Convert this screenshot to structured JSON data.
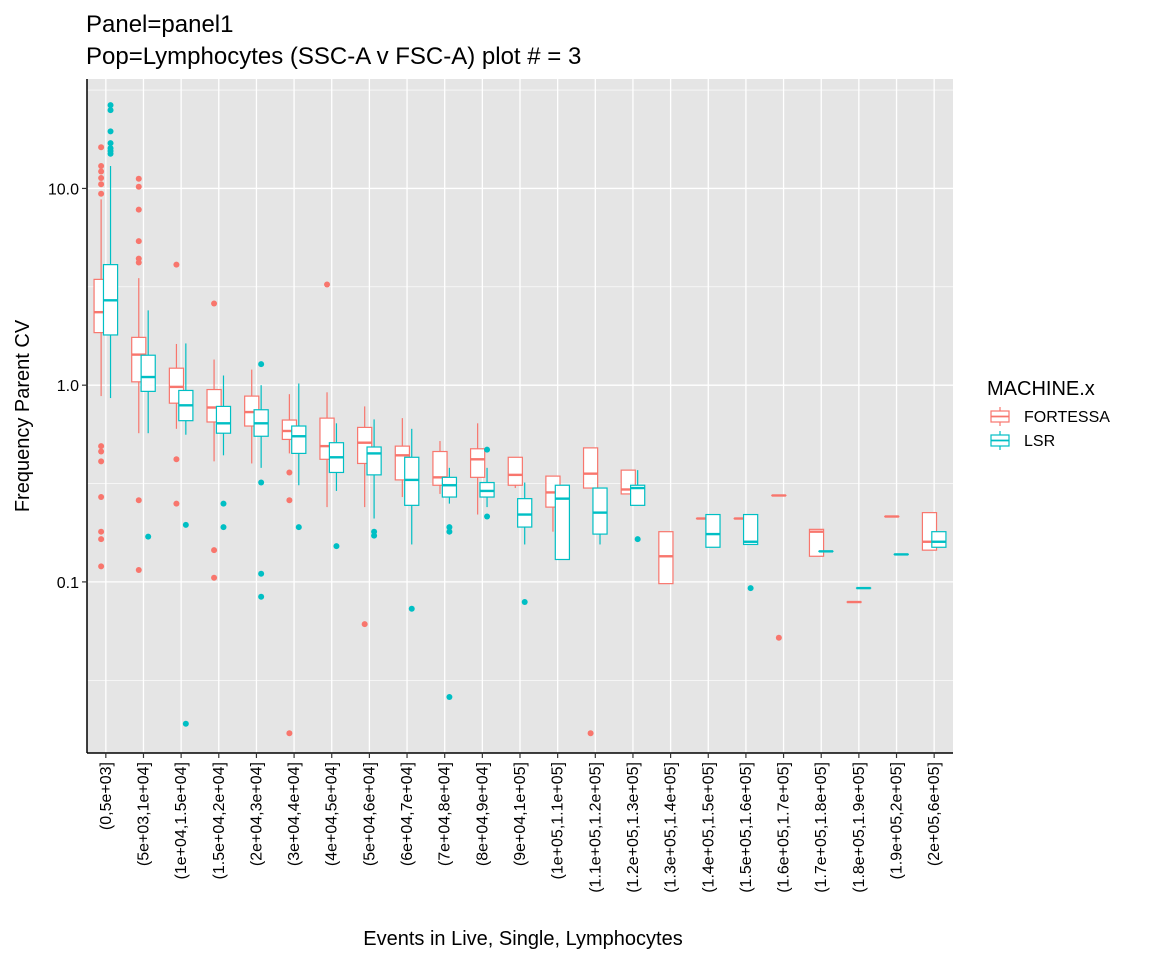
{
  "chart_data": {
    "type": "box",
    "title_lines": [
      "Panel=panel1",
      "Pop=Lymphocytes (SSC-A v FSC-A) plot # = 3"
    ],
    "xlabel": "Events in Live, Single, Lymphocytes",
    "ylabel": "Frequency Parent CV",
    "y_scale": "log10",
    "ylim": [
      0.0135,
      36
    ],
    "y_ticks": [
      {
        "value": 0.1,
        "label": "0.1"
      },
      {
        "value": 1.0,
        "label": "1.0"
      },
      {
        "value": 10.0,
        "label": "10.0"
      }
    ],
    "grid": true,
    "legend": {
      "title": "MACHINE.x",
      "position": "right"
    },
    "series_colors": {
      "FORTESSA": "#F8766D",
      "LSR": "#00BFC4"
    },
    "panel_background": "#E5E5E5",
    "categories": [
      "(0,5e+03]",
      "(5e+03,1e+04]",
      "(1e+04,1.5e+04]",
      "(1.5e+04,2e+04]",
      "(2e+04,3e+04]",
      "(3e+04,4e+04]",
      "(4e+04,5e+04]",
      "(5e+04,6e+04]",
      "(6e+04,7e+04]",
      "(7e+04,8e+04]",
      "(8e+04,9e+04]",
      "(9e+04,1e+05]",
      "(1e+05,1.1e+05]",
      "(1.1e+05,1.2e+05]",
      "(1.2e+05,1.3e+05]",
      "(1.3e+05,1.4e+05]",
      "(1.4e+05,1.5e+05]",
      "(1.5e+05,1.6e+05]",
      "(1.6e+05,1.7e+05]",
      "(1.7e+05,1.8e+05]",
      "(1.8e+05,1.9e+05]",
      "(1.9e+05,2e+05]",
      "(2e+05,6e+05]"
    ],
    "series": [
      {
        "name": "FORTESSA",
        "boxes": [
          {
            "cat": 0,
            "min": 0.88,
            "q1": 1.85,
            "med": 2.35,
            "q3": 3.45,
            "max": 8.8,
            "outliers": [
              16.2,
              13.0,
              12.2,
              11.3,
              10.5,
              9.4,
              0.49,
              0.46,
              0.41,
              0.27,
              0.18,
              0.165,
              0.12
            ]
          },
          {
            "cat": 1,
            "min": 0.57,
            "q1": 1.04,
            "med": 1.43,
            "q3": 1.75,
            "max": 3.5,
            "outliers": [
              11.2,
              10.2,
              7.8,
              5.4,
              4.4,
              4.2,
              0.26,
              0.115
            ]
          },
          {
            "cat": 2,
            "min": 0.6,
            "q1": 0.81,
            "med": 0.98,
            "q3": 1.22,
            "max": 1.62,
            "outliers": [
              4.1,
              0.42,
              0.25
            ]
          },
          {
            "cat": 3,
            "min": 0.41,
            "q1": 0.65,
            "med": 0.77,
            "q3": 0.95,
            "max": 1.35,
            "outliers": [
              2.6,
              0.145,
              0.105
            ]
          },
          {
            "cat": 4,
            "min": 0.4,
            "q1": 0.62,
            "med": 0.73,
            "q3": 0.88,
            "max": 1.2
          },
          {
            "cat": 5,
            "min": 0.45,
            "q1": 0.53,
            "med": 0.585,
            "q3": 0.665,
            "max": 0.9,
            "outliers": [
              0.36,
              0.26,
              0.017
            ]
          },
          {
            "cat": 6,
            "min": 0.24,
            "q1": 0.42,
            "med": 0.49,
            "q3": 0.68,
            "max": 0.92,
            "outliers": [
              3.25
            ]
          },
          {
            "cat": 7,
            "min": 0.24,
            "q1": 0.4,
            "med": 0.51,
            "q3": 0.61,
            "max": 0.78,
            "outliers": [
              0.061
            ]
          },
          {
            "cat": 8,
            "min": 0.27,
            "q1": 0.33,
            "med": 0.44,
            "q3": 0.49,
            "max": 0.68
          },
          {
            "cat": 9,
            "min": 0.28,
            "q1": 0.31,
            "med": 0.34,
            "q3": 0.46,
            "max": 0.52
          },
          {
            "cat": 10,
            "min": 0.22,
            "q1": 0.34,
            "med": 0.42,
            "q3": 0.475,
            "max": 0.64
          },
          {
            "cat": 11,
            "min": 0.3,
            "q1": 0.31,
            "med": 0.35,
            "q3": 0.43,
            "max": 0.43
          },
          {
            "cat": 12,
            "min": 0.18,
            "q1": 0.24,
            "med": 0.285,
            "q3": 0.345,
            "max": 0.345
          },
          {
            "cat": 13,
            "min": 0.3,
            "q1": 0.3,
            "med": 0.355,
            "q3": 0.48,
            "max": 0.48,
            "outliers": [
              0.017
            ]
          },
          {
            "cat": 14,
            "min": 0.28,
            "q1": 0.28,
            "med": 0.295,
            "q3": 0.37,
            "max": 0.37
          },
          {
            "cat": 15,
            "min": 0.098,
            "q1": 0.098,
            "med": 0.135,
            "q3": 0.18,
            "max": 0.18
          },
          {
            "cat": 16,
            "min": 0.21,
            "q1": 0.21,
            "med": 0.21,
            "q3": 0.21,
            "max": 0.21
          },
          {
            "cat": 17,
            "min": 0.21,
            "q1": 0.21,
            "med": 0.21,
            "q3": 0.21,
            "max": 0.21
          },
          {
            "cat": 18,
            "min": 0.275,
            "q1": 0.275,
            "med": 0.275,
            "q3": 0.275,
            "max": 0.275,
            "outliers": [
              0.052
            ]
          },
          {
            "cat": 19,
            "min": 0.135,
            "q1": 0.135,
            "med": 0.18,
            "q3": 0.185,
            "max": 0.185
          },
          {
            "cat": 20,
            "min": 0.079,
            "q1": 0.079,
            "med": 0.079,
            "q3": 0.079,
            "max": 0.079
          },
          {
            "cat": 21,
            "min": 0.215,
            "q1": 0.215,
            "med": 0.215,
            "q3": 0.215,
            "max": 0.215
          },
          {
            "cat": 22,
            "min": 0.145,
            "q1": 0.145,
            "med": 0.16,
            "q3": 0.225,
            "max": 0.225
          }
        ]
      },
      {
        "name": "LSR",
        "boxes": [
          {
            "cat": 0,
            "min": 0.86,
            "q1": 1.8,
            "med": 2.7,
            "q3": 4.1,
            "max": 13.0,
            "outliers": [
              26.5,
              25.0,
              19.5,
              17.0,
              16.0,
              15.5,
              15.0
            ]
          },
          {
            "cat": 1,
            "min": 0.57,
            "q1": 0.93,
            "med": 1.1,
            "q3": 1.42,
            "max": 2.4,
            "outliers": [
              0.17
            ]
          },
          {
            "cat": 2,
            "min": 0.56,
            "q1": 0.66,
            "med": 0.79,
            "q3": 0.94,
            "max": 1.63,
            "outliers": [
              0.195,
              0.019
            ]
          },
          {
            "cat": 3,
            "min": 0.44,
            "q1": 0.57,
            "med": 0.64,
            "q3": 0.78,
            "max": 1.12,
            "outliers": [
              0.25,
              0.19
            ]
          },
          {
            "cat": 4,
            "min": 0.38,
            "q1": 0.55,
            "med": 0.64,
            "q3": 0.75,
            "max": 1.0,
            "outliers": [
              1.28,
              0.32,
              0.11,
              0.084
            ]
          },
          {
            "cat": 5,
            "min": 0.31,
            "q1": 0.45,
            "med": 0.55,
            "q3": 0.62,
            "max": 1.02,
            "outliers": [
              0.19
            ]
          },
          {
            "cat": 6,
            "min": 0.29,
            "q1": 0.36,
            "med": 0.43,
            "q3": 0.51,
            "max": 0.64,
            "outliers": [
              0.152
            ]
          },
          {
            "cat": 7,
            "min": 0.21,
            "q1": 0.35,
            "med": 0.45,
            "q3": 0.485,
            "max": 0.67,
            "outliers": [
              0.18,
              0.172
            ]
          },
          {
            "cat": 8,
            "min": 0.155,
            "q1": 0.245,
            "med": 0.33,
            "q3": 0.43,
            "max": 0.6,
            "outliers": [
              0.073
            ]
          },
          {
            "cat": 9,
            "min": 0.25,
            "q1": 0.27,
            "med": 0.31,
            "q3": 0.34,
            "max": 0.38,
            "outliers": [
              0.19,
              0.18,
              0.026
            ]
          },
          {
            "cat": 10,
            "min": 0.24,
            "q1": 0.27,
            "med": 0.29,
            "q3": 0.32,
            "max": 0.38,
            "outliers": [
              0.47,
              0.215
            ]
          },
          {
            "cat": 11,
            "min": 0.155,
            "q1": 0.19,
            "med": 0.22,
            "q3": 0.265,
            "max": 0.32,
            "outliers": [
              0.079
            ]
          },
          {
            "cat": 12,
            "min": 0.13,
            "q1": 0.13,
            "med": 0.265,
            "q3": 0.31,
            "max": 0.31
          },
          {
            "cat": 13,
            "min": 0.155,
            "q1": 0.175,
            "med": 0.225,
            "q3": 0.3,
            "max": 0.3
          },
          {
            "cat": 14,
            "min": 0.245,
            "q1": 0.245,
            "med": 0.3,
            "q3": 0.31,
            "max": 0.37,
            "outliers": [
              0.165
            ]
          },
          {
            "cat": 16,
            "min": 0.15,
            "q1": 0.15,
            "med": 0.175,
            "q3": 0.22,
            "max": 0.22
          },
          {
            "cat": 17,
            "min": 0.155,
            "q1": 0.155,
            "med": 0.16,
            "q3": 0.22,
            "max": 0.22,
            "outliers": [
              0.093
            ]
          },
          {
            "cat": 19,
            "min": 0.143,
            "q1": 0.143,
            "med": 0.143,
            "q3": 0.143,
            "max": 0.143
          },
          {
            "cat": 20,
            "min": 0.093,
            "q1": 0.093,
            "med": 0.093,
            "q3": 0.093,
            "max": 0.093
          },
          {
            "cat": 21,
            "min": 0.138,
            "q1": 0.138,
            "med": 0.138,
            "q3": 0.138,
            "max": 0.138
          },
          {
            "cat": 22,
            "min": 0.15,
            "q1": 0.15,
            "med": 0.16,
            "q3": 0.18,
            "max": 0.18
          }
        ]
      }
    ]
  }
}
